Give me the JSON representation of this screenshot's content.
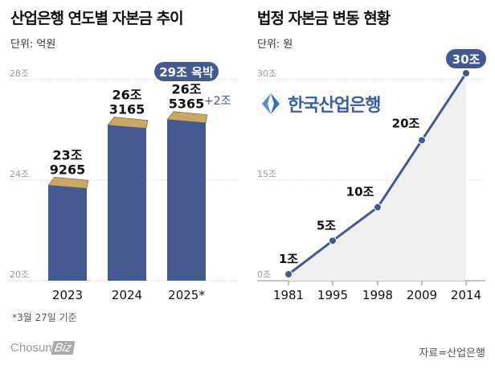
{
  "chart_data": [
    {
      "type": "bar",
      "title": "산업은행 연도별 자본금 추이",
      "unit": "단위: 억원",
      "categories": [
        "2023",
        "2024",
        "2025*"
      ],
      "values": [
        239265,
        263165,
        265365
      ],
      "value_labels": [
        [
          "23조",
          "9265"
        ],
        [
          "26조",
          "3165"
        ],
        [
          "26조",
          "5365"
        ]
      ],
      "ylim": [
        20,
        28.5
      ],
      "yticks": [
        {
          "v": 20,
          "label": "20조"
        },
        {
          "v": 24,
          "label": "24조"
        },
        {
          "v": 28,
          "label": "28조"
        }
      ],
      "annotation_badge": "29조 육박",
      "annotation_delta": "+2조",
      "footnote": "*3월 27일 기준",
      "bar_color": "#44598f",
      "grid": true
    },
    {
      "type": "area",
      "title": "법정 자본금 변동 현황",
      "unit": "단위: 원",
      "categories": [
        "1981",
        "1995",
        "1998",
        "2009",
        "2014"
      ],
      "values": [
        1,
        5,
        10,
        20,
        30
      ],
      "value_labels": [
        "1조",
        "5조",
        "10조",
        "20조",
        "30조"
      ],
      "ylim": [
        0,
        30
      ],
      "yticks": [
        {
          "v": 0,
          "label": "0조"
        },
        {
          "v": 15,
          "label": "15조"
        },
        {
          "v": 30,
          "label": "30조"
        }
      ],
      "line_color": "#44598f",
      "fill_color": "#f0f0f2",
      "grid": true
    }
  ],
  "bank_logo_text": "한국산업은행",
  "source": "자료=산업은행",
  "brand": {
    "name": "Chosun",
    "suffix": "Biz"
  }
}
